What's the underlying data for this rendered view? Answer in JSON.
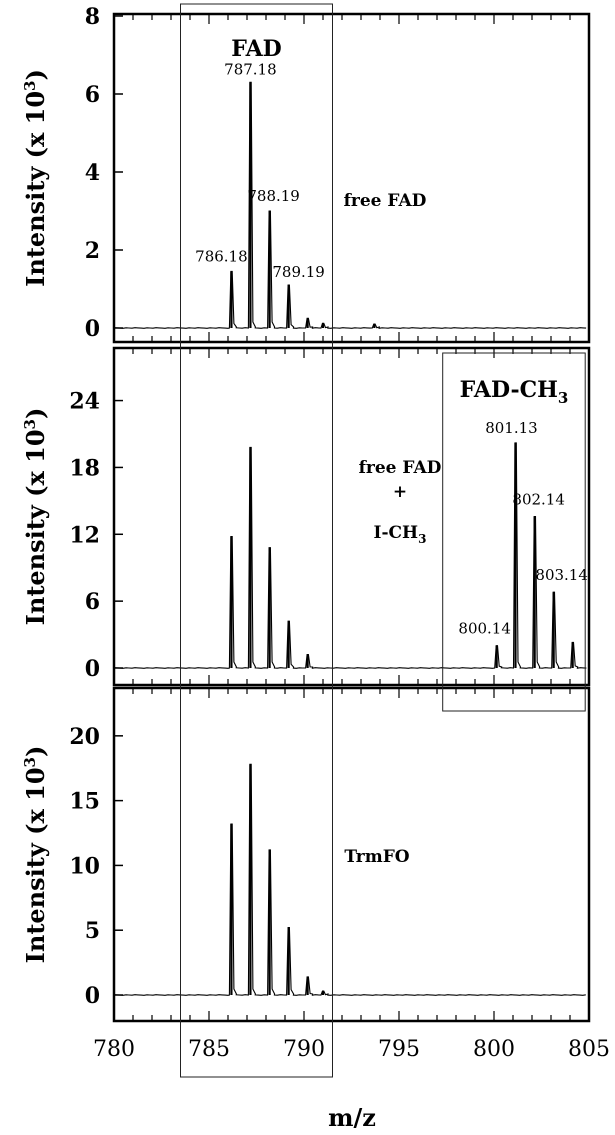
{
  "chart_data": {
    "type": "line",
    "xlabel": "m/z",
    "x_ticks": [
      "780",
      "785",
      "790",
      "795",
      "800",
      "805"
    ],
    "xlim": [
      780,
      805
    ],
    "panels": [
      {
        "ylabel": "Intensity (x 10",
        "ylabel_sup": "3",
        "ylabel_close": ")",
        "ylim": [
          0,
          8
        ],
        "y_ticks": [
          0,
          2,
          4,
          6,
          8
        ],
        "annotation_lines": [
          "free FAD"
        ],
        "peaks": [
          {
            "x": 786.18,
            "y": 1.45,
            "label": "786.18"
          },
          {
            "x": 787.18,
            "y": 6.3,
            "label": "787.18"
          },
          {
            "x": 788.19,
            "y": 3.0,
            "label": "788.19"
          },
          {
            "x": 789.19,
            "y": 1.1,
            "label": "789.19"
          },
          {
            "x": 790.19,
            "y": 0.25
          },
          {
            "x": 791.0,
            "y": 0.12
          },
          {
            "x": 793.7,
            "y": 0.1
          }
        ]
      },
      {
        "ylabel": "Intensity (x 10",
        "ylabel_sup": "3",
        "ylabel_close": ")",
        "ylim": [
          0,
          28
        ],
        "y_ticks": [
          0,
          6,
          12,
          18,
          24
        ],
        "annotation_lines": [
          "free FAD",
          "+",
          "I-CH"
        ],
        "annotation_sub": "3",
        "peaks": [
          {
            "x": 786.18,
            "y": 11.8
          },
          {
            "x": 787.18,
            "y": 19.8
          },
          {
            "x": 788.19,
            "y": 10.8
          },
          {
            "x": 789.19,
            "y": 4.2
          },
          {
            "x": 790.19,
            "y": 1.2
          },
          {
            "x": 800.14,
            "y": 2.0,
            "label": "800.14"
          },
          {
            "x": 801.13,
            "y": 20.2,
            "label": "801.13"
          },
          {
            "x": 802.14,
            "y": 13.6,
            "label": "802.14"
          },
          {
            "x": 803.14,
            "y": 6.8,
            "label": "803.14"
          },
          {
            "x": 804.14,
            "y": 2.3
          }
        ]
      },
      {
        "ylabel": "Intensity (x 10",
        "ylabel_sup": "3",
        "ylabel_close": ")",
        "ylim": [
          0,
          24
        ],
        "y_ticks": [
          0,
          5,
          10,
          15,
          20
        ],
        "annotation_lines": [
          "TrmFO"
        ],
        "peaks": [
          {
            "x": 786.18,
            "y": 13.2
          },
          {
            "x": 787.18,
            "y": 17.8
          },
          {
            "x": 788.19,
            "y": 11.2
          },
          {
            "x": 789.19,
            "y": 5.2
          },
          {
            "x": 790.19,
            "y": 1.4
          },
          {
            "x": 791.0,
            "y": 0.3
          }
        ]
      }
    ],
    "boxes": [
      {
        "label": "FAD",
        "label_sub": "",
        "x_range": [
          783.5,
          791.5
        ]
      },
      {
        "label": "FAD-CH",
        "label_sub": "3",
        "x_range": [
          797.3,
          804.8
        ]
      }
    ]
  }
}
